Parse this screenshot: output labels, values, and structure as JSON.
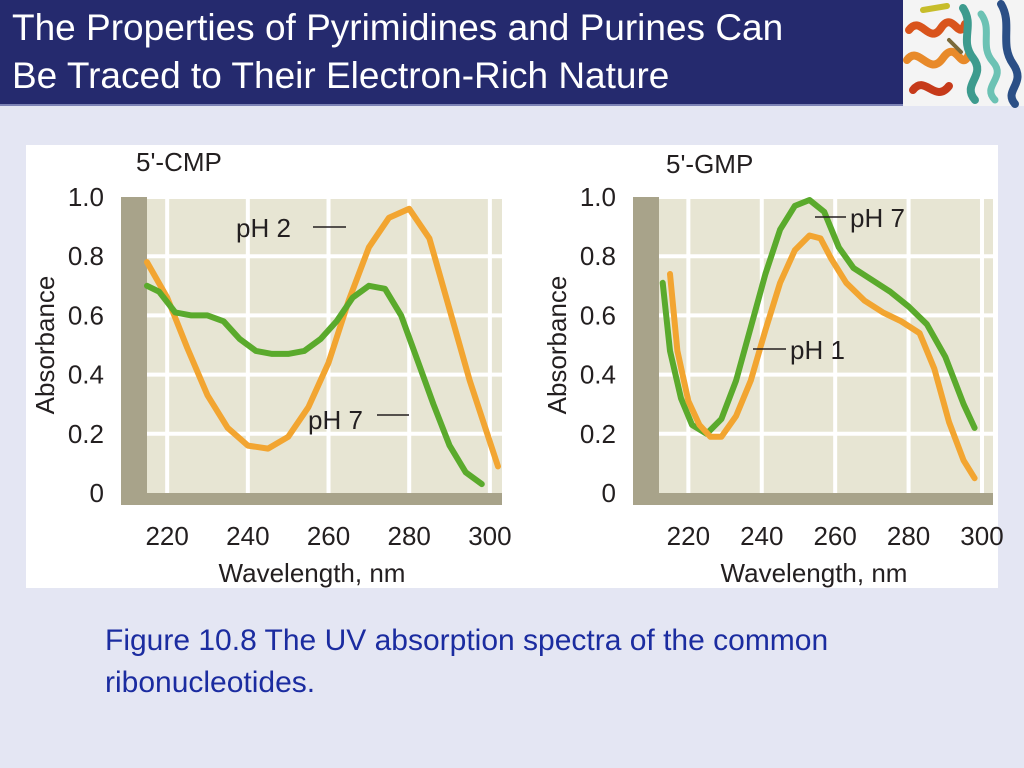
{
  "slide": {
    "title_line1": "The Properties of Pyrimidines and Purines Can",
    "title_line2": "Be Traced to Their Electron-Rich Nature",
    "caption_line1": "Figure 10.8  The UV absorption spectra of the common",
    "caption_line2": "ribonucleotides.",
    "logo_icon": "protein-helix-ribbon-icon"
  },
  "colors": {
    "title_bg": "#252a6e",
    "plot_bg": "#e7e5d3",
    "axis_band": "#a8a38a",
    "green_curve": "#5aaa2c",
    "orange_curve": "#f2a531",
    "caption": "#1b2ca0"
  },
  "chart_data": [
    {
      "type": "line",
      "title": "5'-CMP",
      "xlabel": "Wavelength, nm",
      "ylabel": "Absorbance",
      "xlim": [
        215,
        303
      ],
      "ylim": [
        0,
        1.0
      ],
      "xticks": [
        "220",
        "240",
        "260",
        "280",
        "300"
      ],
      "yticks": [
        "0",
        "0.2",
        "0.4",
        "0.6",
        "0.8",
        "1.0"
      ],
      "grid": true,
      "series": [
        {
          "name": "pH 2",
          "color": "#f2a531",
          "x": [
            215,
            220,
            225,
            230,
            235,
            240,
            245,
            250,
            255,
            260,
            265,
            270,
            275,
            280,
            285,
            290,
            295,
            302
          ],
          "y": [
            0.78,
            0.66,
            0.49,
            0.33,
            0.22,
            0.16,
            0.15,
            0.19,
            0.29,
            0.44,
            0.65,
            0.83,
            0.93,
            0.96,
            0.86,
            0.62,
            0.38,
            0.09
          ]
        },
        {
          "name": "pH 7",
          "color": "#5aaa2c",
          "x": [
            215,
            218,
            222,
            226,
            230,
            234,
            238,
            242,
            246,
            250,
            254,
            258,
            262,
            266,
            270,
            274,
            278,
            282,
            286,
            290,
            294,
            298
          ],
          "y": [
            0.7,
            0.68,
            0.61,
            0.6,
            0.6,
            0.58,
            0.52,
            0.48,
            0.47,
            0.47,
            0.48,
            0.52,
            0.58,
            0.66,
            0.7,
            0.69,
            0.6,
            0.45,
            0.3,
            0.16,
            0.07,
            0.03
          ]
        }
      ],
      "annotations": [
        "pH 2",
        "pH 7"
      ]
    },
    {
      "type": "line",
      "title": "5'-GMP",
      "xlabel": "Wavelength, nm",
      "ylabel": "Absorbance",
      "xlim": [
        212,
        303
      ],
      "ylim": [
        0,
        1.0
      ],
      "xticks": [
        "220",
        "240",
        "260",
        "280",
        "300"
      ],
      "yticks": [
        "0",
        "0.2",
        "0.4",
        "0.6",
        "0.8",
        "1.0"
      ],
      "grid": true,
      "series": [
        {
          "name": "pH 7",
          "color": "#5aaa2c",
          "x": [
            213,
            215,
            218,
            221,
            225,
            229,
            233,
            237,
            241,
            245,
            249,
            253,
            257,
            261,
            265,
            270,
            275,
            280,
            285,
            290,
            295,
            298
          ],
          "y": [
            0.71,
            0.48,
            0.32,
            0.23,
            0.2,
            0.25,
            0.38,
            0.56,
            0.74,
            0.89,
            0.97,
            0.99,
            0.95,
            0.83,
            0.76,
            0.72,
            0.68,
            0.63,
            0.57,
            0.46,
            0.3,
            0.22
          ]
        },
        {
          "name": "pH 1",
          "color": "#f2a531",
          "x": [
            215,
            217,
            220,
            223,
            226,
            229,
            233,
            237,
            241,
            245,
            249,
            253,
            256,
            259,
            263,
            268,
            273,
            278,
            283,
            287,
            291,
            295,
            298
          ],
          "y": [
            0.74,
            0.48,
            0.31,
            0.23,
            0.19,
            0.19,
            0.26,
            0.38,
            0.55,
            0.71,
            0.82,
            0.87,
            0.86,
            0.79,
            0.71,
            0.65,
            0.61,
            0.58,
            0.54,
            0.42,
            0.24,
            0.11,
            0.05
          ]
        }
      ],
      "annotations": [
        "pH 7",
        "pH 1"
      ]
    }
  ]
}
